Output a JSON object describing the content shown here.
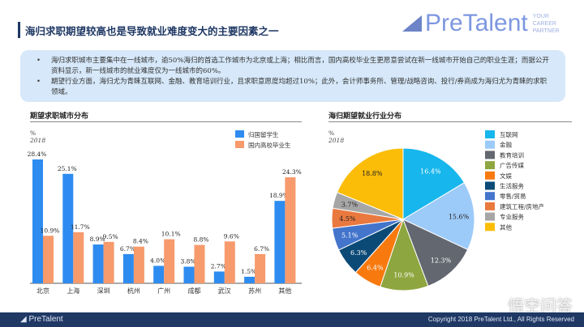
{
  "header": {
    "title": "海归求职期望较高也是导致就业难度变大的主要因素之一",
    "logo": "PreTalent",
    "logo_tagline": [
      "YOUR",
      "CAREER",
      "PARTNER"
    ]
  },
  "summary": [
    "海归求职城市主要集中在一线城市，逾50%海归的首选工作城市为北京或上海；相比而言，国内高校毕业生更愿意尝试在新一线城市开始自己的职业生涯；而据公开资料显示，新一线城市的就业难度仅为一线城市的60%。",
    "期望行业方面，海归尤为青睐互联网、金融、教育培训行业，且求职意愿度均超过10%；此外，会计师事务所、管理/战略咨询、投行/券商成为海归尤为青睐的求职领域。"
  ],
  "chart_data": [
    {
      "type": "bar",
      "title": "期望求职城市分布",
      "unit": "%",
      "year": "2018",
      "categories": [
        "北京",
        "上海",
        "深圳",
        "杭州",
        "广州",
        "成都",
        "武汉",
        "苏州",
        "其他"
      ],
      "series": [
        {
          "name": "归国留学生",
          "color": "#2e8cf0",
          "values": [
            28.4,
            25.1,
            8.9,
            6.7,
            4.0,
            3.8,
            2.7,
            1.5,
            18.9
          ]
        },
        {
          "name": "国内高校毕业生",
          "color": "#f79a6c",
          "values": [
            10.9,
            11.7,
            9.5,
            8.4,
            10.1,
            8.8,
            9.6,
            6.7,
            24.3
          ]
        }
      ],
      "legend": "top-right",
      "ylim": [
        0,
        30
      ]
    },
    {
      "type": "pie",
      "title": "海归期望就业行业分布",
      "unit": "%",
      "year": "2018",
      "legend": "right",
      "slices": [
        {
          "label": "互联网",
          "value": 16.4,
          "color": "#17b6ec"
        },
        {
          "label": "金融",
          "value": 15.6,
          "color": "#9dcbf9"
        },
        {
          "label": "教育培训",
          "value": 12.3,
          "color": "#636770"
        },
        {
          "label": "广告传媒",
          "value": 10.9,
          "color": "#8ea63f"
        },
        {
          "label": "文娱",
          "value": 6.4,
          "color": "#f87a0f"
        },
        {
          "label": "生活服务",
          "value": 6.3,
          "color": "#0b4a76"
        },
        {
          "label": "零售/贸易",
          "value": 5.1,
          "color": "#4475cc"
        },
        {
          "label": "建筑工程/房地产",
          "value": 4.5,
          "color": "#e9793f"
        },
        {
          "label": "专业服务",
          "value": 3.7,
          "color": "#a6a6a6"
        },
        {
          "label": "其他",
          "value": 18.8,
          "color": "#fbbd08"
        }
      ]
    }
  ],
  "footer": {
    "logo": "PreTalent",
    "copyright": "Copyright 2018 PreTalent Ltd., All Rights Reserved",
    "watermark": "悟空问答"
  }
}
